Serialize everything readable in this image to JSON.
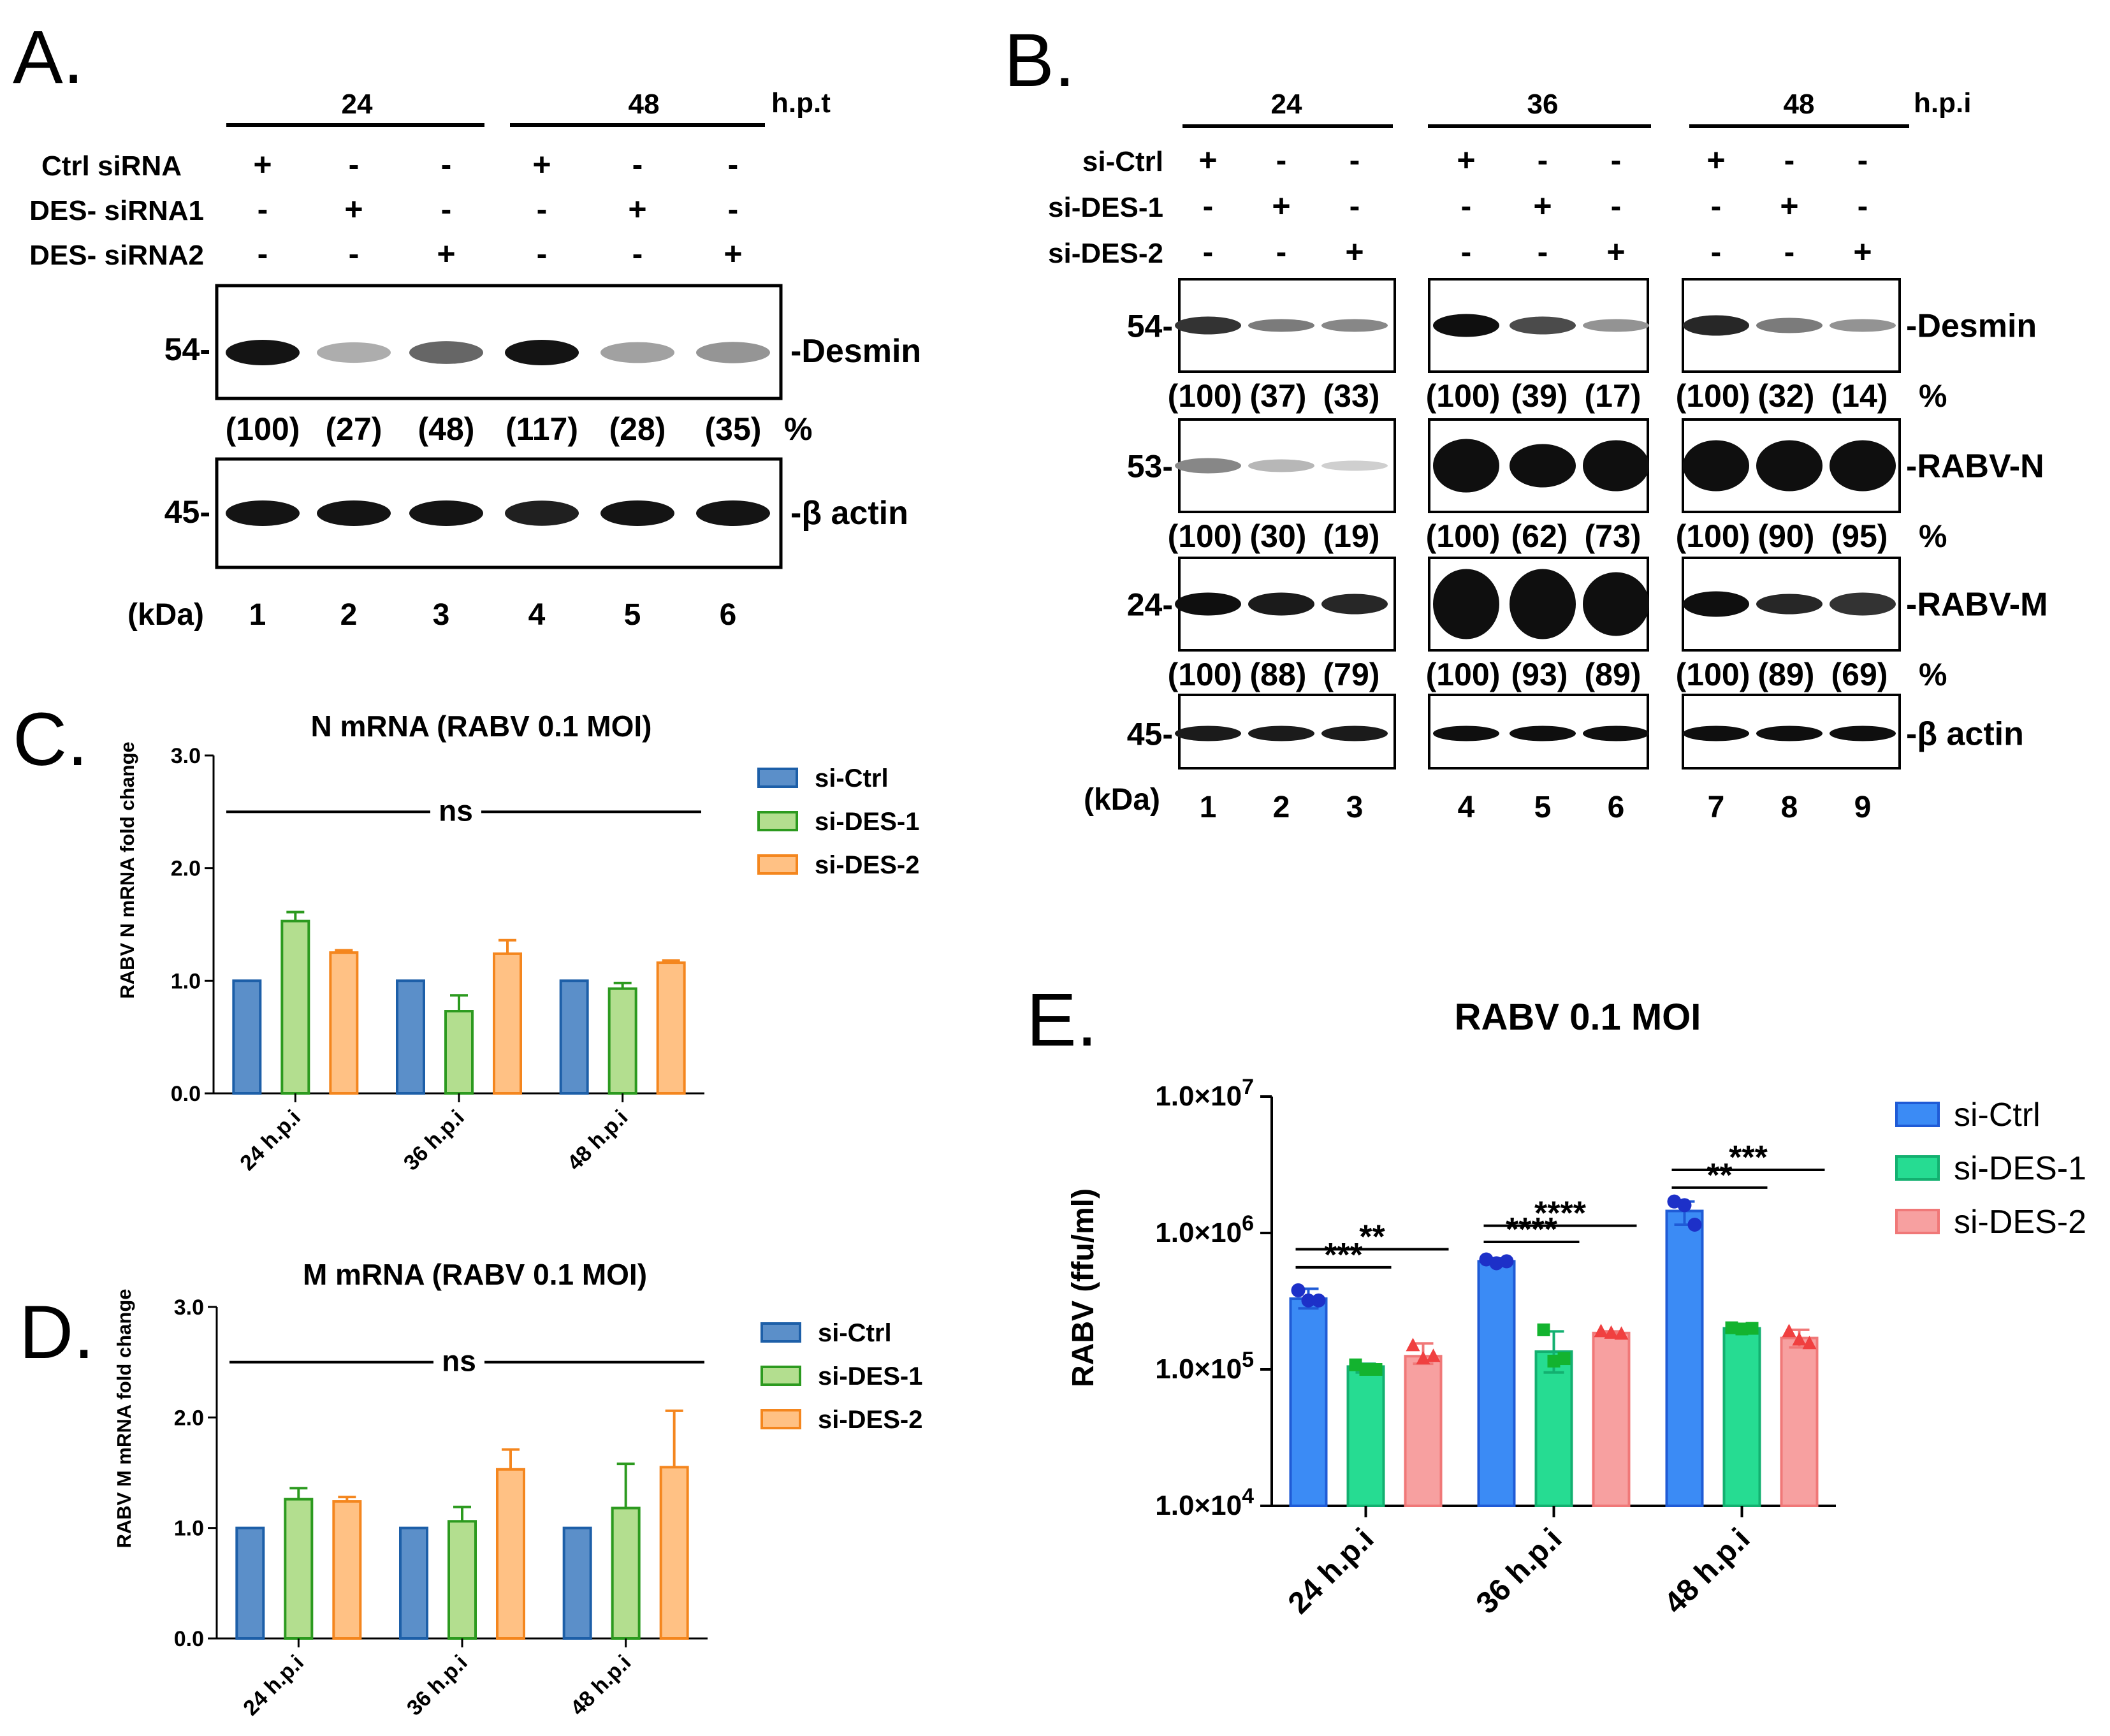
{
  "panels": {
    "A": {
      "label": "A.",
      "time_groups": [
        "24",
        "48"
      ],
      "time_unit": "h.p.t",
      "rows": [
        {
          "label": "Ctrl siRNA",
          "signs": [
            "+",
            "-",
            "-",
            "+",
            "-",
            "-"
          ]
        },
        {
          "label": "DES- siRNA1",
          "signs": [
            "-",
            "+",
            "-",
            "-",
            "+",
            "-"
          ]
        },
        {
          "label": "DES- siRNA2",
          "signs": [
            "-",
            "-",
            "+",
            "-",
            "-",
            "+"
          ]
        }
      ],
      "blots": [
        {
          "kda": "54-",
          "label": "-Desmin",
          "intensity": [
            1.0,
            0.35,
            0.65,
            1.0,
            0.4,
            0.45
          ]
        },
        {
          "kda": "45-",
          "label": "-β actin",
          "intensity": [
            1.0,
            1.0,
            1.0,
            0.95,
            1.0,
            1.0
          ]
        }
      ],
      "quant": [
        "(100)",
        "(27)",
        "(48)",
        "(117)",
        "(28)",
        "(35)"
      ],
      "percent": "%",
      "kda_unit": "(kDa)",
      "lanes": [
        "1",
        "2",
        "3",
        "4",
        "5",
        "6"
      ]
    },
    "B": {
      "label": "B.",
      "time_groups": [
        "24",
        "36",
        "48"
      ],
      "time_unit": "h.p.i",
      "rows": [
        {
          "label": "si-Ctrl",
          "signs": [
            "+",
            "-",
            "-",
            "+",
            "-",
            "-",
            "+",
            "-",
            "-"
          ]
        },
        {
          "label": "si-DES-1",
          "signs": [
            "-",
            "+",
            "-",
            "-",
            "+",
            "-",
            "-",
            "+",
            "-"
          ]
        },
        {
          "label": "si-DES-2",
          "signs": [
            "-",
            "-",
            "+",
            "-",
            "-",
            "+",
            "-",
            "-",
            "+"
          ]
        }
      ],
      "blots": [
        {
          "kda": "54-",
          "label": "-Desmin",
          "quant": [
            "(100)",
            "(37)",
            "(33)",
            "(100)",
            "(39)",
            "(17)",
            "(100)",
            "(32)",
            "(14)"
          ],
          "percent": "%"
        },
        {
          "kda": "53-",
          "label": "-RABV-N",
          "quant": [
            "(100)",
            "(30)",
            "(19)",
            "(100)",
            "(62)",
            "(73)",
            "(100)",
            "(90)",
            "(95)"
          ],
          "percent": "%"
        },
        {
          "kda": "24-",
          "label": "-RABV-M",
          "quant": [
            "(100)",
            "(88)",
            "(79)",
            "(100)",
            "(93)",
            "(89)",
            "(100)",
            "(89)",
            "(69)"
          ],
          "percent": "%"
        },
        {
          "kda": "45-",
          "label": "-β actin",
          "quant": [],
          "percent": ""
        }
      ],
      "kda_unit": "(kDa)",
      "lanes": [
        "1",
        "2",
        "3",
        "4",
        "5",
        "6",
        "7",
        "8",
        "9"
      ]
    },
    "C": {
      "label": "C."
    },
    "D": {
      "label": "D."
    },
    "E": {
      "label": "E."
    }
  },
  "colors": {
    "ctrl_fill": "#5b8fc9",
    "ctrl_edge": "#1d5fa8",
    "des1_fill": "#b3de8f",
    "des1_edge": "#2c9a1f",
    "des2_fill": "#ffc184",
    "des2_edge": "#f4861e",
    "e_ctrl": "#3b8bf5",
    "e_ctrl_edge": "#1f5bd6",
    "e_ctrl_dot": "#1d30c8",
    "e_des1": "#26dc92",
    "e_des1_edge": "#13b070",
    "e_des1_dot": "#13b32f",
    "e_des2": "#f7a0a0",
    "e_des2_edge": "#f07878",
    "e_des2_dot": "#f04040"
  },
  "chart_data": [
    {
      "panel": "C",
      "type": "bar",
      "title": "N mRNA (RABV 0.1 MOI)",
      "ylabel": "RABV N mRNA fold change",
      "xlabel": "",
      "categories": [
        "24 h.p.i",
        "36 h.p.i",
        "48 h.p.i"
      ],
      "ylim": [
        0,
        3
      ],
      "yticks": [
        "0.0",
        "1.0",
        "2.0",
        "3.0"
      ],
      "series": [
        {
          "name": "si-Ctrl",
          "values": [
            1.0,
            1.0,
            1.0
          ],
          "errors": [
            0,
            0,
            0
          ]
        },
        {
          "name": "si-DES-1",
          "values": [
            1.53,
            0.73,
            0.93
          ],
          "errors": [
            0.08,
            0.14,
            0.05
          ]
        },
        {
          "name": "si-DES-2",
          "values": [
            1.25,
            1.24,
            1.16
          ],
          "errors": [
            0.02,
            0.12,
            0.02
          ]
        }
      ],
      "annotation": "ns",
      "legend": "right"
    },
    {
      "panel": "D",
      "type": "bar",
      "title": "M mRNA (RABV 0.1 MOI)",
      "ylabel": "RABV M mRNA fold change",
      "xlabel": "",
      "categories": [
        "24 h.p.i",
        "36 h.p.i",
        "48 h.p.i"
      ],
      "ylim": [
        0,
        3
      ],
      "yticks": [
        "0.0",
        "1.0",
        "2.0",
        "3.0"
      ],
      "series": [
        {
          "name": "si-Ctrl",
          "values": [
            1.0,
            1.0,
            1.0
          ],
          "errors": [
            0,
            0,
            0
          ]
        },
        {
          "name": "si-DES-1",
          "values": [
            1.26,
            1.06,
            1.18
          ],
          "errors": [
            0.1,
            0.13,
            0.4
          ]
        },
        {
          "name": "si-DES-2",
          "values": [
            1.24,
            1.53,
            1.55
          ],
          "errors": [
            0.04,
            0.18,
            0.51
          ]
        }
      ],
      "annotation": "ns",
      "legend": "right"
    },
    {
      "panel": "E",
      "type": "bar",
      "title": "RABV 0.1 MOI",
      "ylabel": "RABV (ffu/ml)",
      "xlabel": "",
      "yscale": "log",
      "categories": [
        "24 h.p.i",
        "36 h.p.i",
        "48 h.p.i"
      ],
      "ylim": [
        10000,
        10000000
      ],
      "yticks": [
        {
          "mantissa": "1.0",
          "exp": "7"
        },
        {
          "mantissa": "1.0",
          "exp": "6"
        },
        {
          "mantissa": "1.0",
          "exp": "5"
        },
        {
          "mantissa": "1.0",
          "exp": "4"
        }
      ],
      "series": [
        {
          "name": "si-Ctrl",
          "marker": "circle",
          "values": [
            330000,
            620000,
            1450000
          ],
          "errhi": [
            390000,
            650000,
            1700000
          ],
          "errlo": [
            280000,
            590000,
            1150000
          ],
          "points": [
            [
              380000,
              320000,
              320000
            ],
            [
              640000,
              600000,
              620000
            ],
            [
              1700000,
              1600000,
              1150000
            ]
          ]
        },
        {
          "name": "si-DES-1",
          "marker": "square",
          "values": [
            105000,
            135000,
            200000
          ],
          "errhi": [
            110000,
            190000,
            205000
          ],
          "errlo": [
            95000,
            95000,
            195000
          ],
          "points": [
            [
              108000,
              100000,
              100000
            ],
            [
              195000,
              115000,
              120000
            ],
            [
              202000,
              198000,
              200000
            ]
          ]
        },
        {
          "name": "si-DES-2",
          "marker": "triangle",
          "values": [
            125000,
            185000,
            170000
          ],
          "errhi": [
            155000,
            190000,
            195000
          ],
          "errlo": [
            110000,
            180000,
            145000
          ],
          "points": [
            [
              150000,
              120000,
              125000
            ],
            [
              190000,
              185000,
              182000
            ],
            [
              190000,
              165000,
              155000
            ]
          ]
        }
      ],
      "significance": [
        {
          "group": 0,
          "from": "si-Ctrl",
          "to": "si-DES-1",
          "label": "***",
          "y": 560000
        },
        {
          "group": 0,
          "from": "si-Ctrl",
          "to": "si-DES-2",
          "label": "**",
          "y": 760000
        },
        {
          "group": 1,
          "from": "si-Ctrl",
          "to": "si-DES-1",
          "label": "****",
          "y": 860000
        },
        {
          "group": 1,
          "from": "si-Ctrl",
          "to": "si-DES-2",
          "label": "****",
          "y": 1130000
        },
        {
          "group": 2,
          "from": "si-Ctrl",
          "to": "si-DES-1",
          "label": "**",
          "y": 2150000
        },
        {
          "group": 2,
          "from": "si-Ctrl",
          "to": "si-DES-2",
          "label": "***",
          "y": 2900000
        }
      ],
      "legend": "right"
    }
  ]
}
